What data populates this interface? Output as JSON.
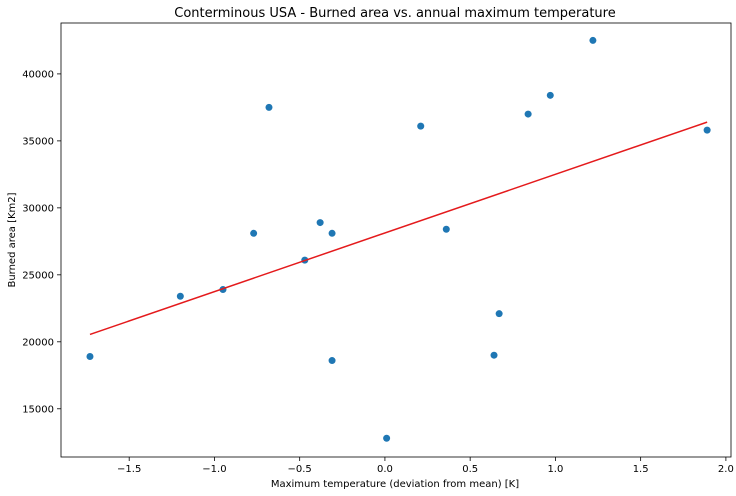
{
  "chart_data": {
    "type": "scatter",
    "title": "Conterminous USA - Burned area vs. annual maximum temperature",
    "xlabel": "Maximum temperature (deviation from mean) [K]",
    "ylabel": "Burned area [Km2]",
    "xlim": [
      -1.9,
      2.03
    ],
    "ylim": [
      11400,
      43800
    ],
    "xticks": [
      -1.5,
      -1.0,
      -0.5,
      0.0,
      0.5,
      1.0,
      1.5,
      2.0
    ],
    "xtick_labels": [
      "−1.5",
      "−1.0",
      "−0.5",
      "0.0",
      "0.5",
      "1.0",
      "1.5",
      "2.0"
    ],
    "yticks": [
      15000,
      20000,
      25000,
      30000,
      35000,
      40000
    ],
    "ytick_labels": [
      "15000",
      "20000",
      "25000",
      "30000",
      "35000",
      "40000"
    ],
    "grid": false,
    "series": [
      {
        "type": "scatter",
        "color": "#1f77b4",
        "points": [
          {
            "x": -1.73,
            "y": 18900
          },
          {
            "x": -1.2,
            "y": 23400
          },
          {
            "x": -0.95,
            "y": 23900
          },
          {
            "x": -0.77,
            "y": 28100
          },
          {
            "x": -0.68,
            "y": 37500
          },
          {
            "x": -0.47,
            "y": 26100
          },
          {
            "x": -0.38,
            "y": 28900
          },
          {
            "x": -0.31,
            "y": 28100
          },
          {
            "x": -0.31,
            "y": 18600
          },
          {
            "x": 0.01,
            "y": 12800
          },
          {
            "x": 0.21,
            "y": 36100
          },
          {
            "x": 0.36,
            "y": 28400
          },
          {
            "x": 0.64,
            "y": 19000
          },
          {
            "x": 0.67,
            "y": 22100
          },
          {
            "x": 0.84,
            "y": 37000
          },
          {
            "x": 0.97,
            "y": 38400
          },
          {
            "x": 1.22,
            "y": 42500
          },
          {
            "x": 1.89,
            "y": 35800
          }
        ]
      },
      {
        "type": "line",
        "color": "#e41a1c",
        "x": [
          -1.73,
          1.89
        ],
        "y": [
          20550,
          36400
        ]
      }
    ]
  }
}
